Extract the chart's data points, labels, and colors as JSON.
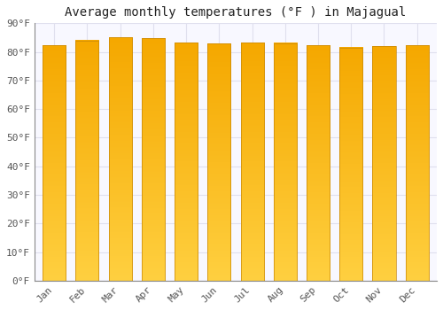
{
  "title": "Average monthly temperatures (°F ) in Majagual",
  "months": [
    "Jan",
    "Feb",
    "Mar",
    "Apr",
    "May",
    "Jun",
    "Jul",
    "Aug",
    "Sep",
    "Oct",
    "Nov",
    "Dec"
  ],
  "values": [
    82.4,
    84.0,
    85.0,
    84.7,
    83.3,
    82.9,
    83.3,
    83.1,
    82.4,
    81.5,
    82.0,
    82.2
  ],
  "bar_color_top": "#F5A800",
  "bar_color_bottom": "#FFD040",
  "bar_edge_color": "#C8880A",
  "background_color": "#FFFFFF",
  "plot_bg_color": "#F8F8FF",
  "grid_color": "#E0E0EE",
  "ylim": [
    0,
    90
  ],
  "yticks": [
    0,
    10,
    20,
    30,
    40,
    50,
    60,
    70,
    80,
    90
  ],
  "ytick_labels": [
    "0°F",
    "10°F",
    "20°F",
    "30°F",
    "40°F",
    "50°F",
    "60°F",
    "70°F",
    "80°F",
    "90°F"
  ],
  "title_fontsize": 10,
  "tick_fontsize": 8,
  "bar_width": 0.7
}
